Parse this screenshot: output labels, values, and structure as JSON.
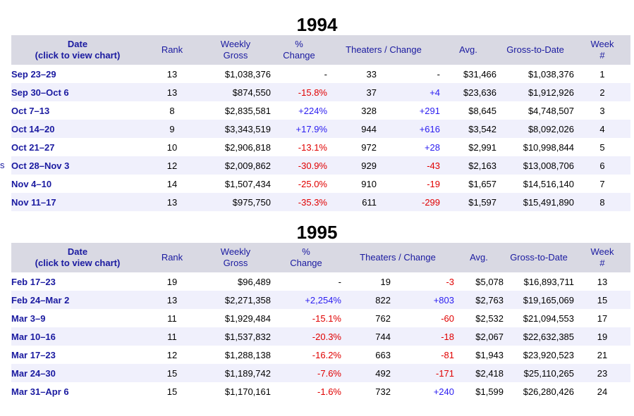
{
  "left_stub": "s",
  "header": {
    "date": "Date",
    "date_sub": "(click to view chart)",
    "rank": "Rank",
    "weekly": "Weekly",
    "gross": "Gross",
    "pct": "%",
    "change": "Change",
    "theaters": "Theaters",
    "slash": " / ",
    "theaters_change": "Change",
    "avg": "Avg.",
    "gtd": "Gross-to-Date",
    "week": "Week",
    "week_hash": "#"
  },
  "colors": {
    "header_bg": "#d9d9e3",
    "alt_row": "#f0f0fc",
    "link": "#1a1aa0",
    "negative": "#e00000",
    "positive": "#2a1cf0"
  },
  "sections": [
    {
      "year": "1994",
      "rows": [
        {
          "date": "Sep 23–29",
          "rank": "13",
          "gross": "$1,038,376",
          "pct": "-",
          "theaters": "33",
          "change": "-",
          "avg": "$31,466",
          "gtd": "$1,038,376",
          "week": "1"
        },
        {
          "date": "Sep 30–Oct 6",
          "rank": "13",
          "gross": "$874,550",
          "pct": "-15.8%",
          "theaters": "37",
          "change": "+4",
          "avg": "$23,636",
          "gtd": "$1,912,926",
          "week": "2"
        },
        {
          "date": "Oct 7–13",
          "rank": "8",
          "gross": "$2,835,581",
          "pct": "+224%",
          "theaters": "328",
          "change": "+291",
          "avg": "$8,645",
          "gtd": "$4,748,507",
          "week": "3"
        },
        {
          "date": "Oct 14–20",
          "rank": "9",
          "gross": "$3,343,519",
          "pct": "+17.9%",
          "theaters": "944",
          "change": "+616",
          "avg": "$3,542",
          "gtd": "$8,092,026",
          "week": "4"
        },
        {
          "date": "Oct 21–27",
          "rank": "10",
          "gross": "$2,906,818",
          "pct": "-13.1%",
          "theaters": "972",
          "change": "+28",
          "avg": "$2,991",
          "gtd": "$10,998,844",
          "week": "5"
        },
        {
          "date": "Oct 28–Nov 3",
          "rank": "12",
          "gross": "$2,009,862",
          "pct": "-30.9%",
          "theaters": "929",
          "change": "-43",
          "avg": "$2,163",
          "gtd": "$13,008,706",
          "week": "6"
        },
        {
          "date": "Nov 4–10",
          "rank": "14",
          "gross": "$1,507,434",
          "pct": "-25.0%",
          "theaters": "910",
          "change": "-19",
          "avg": "$1,657",
          "gtd": "$14,516,140",
          "week": "7"
        },
        {
          "date": "Nov 11–17",
          "rank": "13",
          "gross": "$975,750",
          "pct": "-35.3%",
          "theaters": "611",
          "change": "-299",
          "avg": "$1,597",
          "gtd": "$15,491,890",
          "week": "8"
        }
      ]
    },
    {
      "year": "1995",
      "rows": [
        {
          "date": "Feb 17–23",
          "rank": "19",
          "gross": "$96,489",
          "pct": "-",
          "theaters": "19",
          "change": "-3",
          "avg": "$5,078",
          "gtd": "$16,893,711",
          "week": "13"
        },
        {
          "date": "Feb 24–Mar 2",
          "rank": "13",
          "gross": "$2,271,358",
          "pct": "+2,254%",
          "theaters": "822",
          "change": "+803",
          "avg": "$2,763",
          "gtd": "$19,165,069",
          "week": "15"
        },
        {
          "date": "Mar 3–9",
          "rank": "11",
          "gross": "$1,929,484",
          "pct": "-15.1%",
          "theaters": "762",
          "change": "-60",
          "avg": "$2,532",
          "gtd": "$21,094,553",
          "week": "17"
        },
        {
          "date": "Mar 10–16",
          "rank": "11",
          "gross": "$1,537,832",
          "pct": "-20.3%",
          "theaters": "744",
          "change": "-18",
          "avg": "$2,067",
          "gtd": "$22,632,385",
          "week": "19"
        },
        {
          "date": "Mar 17–23",
          "rank": "12",
          "gross": "$1,288,138",
          "pct": "-16.2%",
          "theaters": "663",
          "change": "-81",
          "avg": "$1,943",
          "gtd": "$23,920,523",
          "week": "21"
        },
        {
          "date": "Mar 24–30",
          "rank": "15",
          "gross": "$1,189,742",
          "pct": "-7.6%",
          "theaters": "492",
          "change": "-171",
          "avg": "$2,418",
          "gtd": "$25,110,265",
          "week": "23"
        },
        {
          "date": "Mar 31–Apr 6",
          "rank": "15",
          "gross": "$1,170,161",
          "pct": "-1.6%",
          "theaters": "732",
          "change": "+240",
          "avg": "$1,599",
          "gtd": "$26,280,426",
          "week": "24"
        }
      ]
    }
  ]
}
